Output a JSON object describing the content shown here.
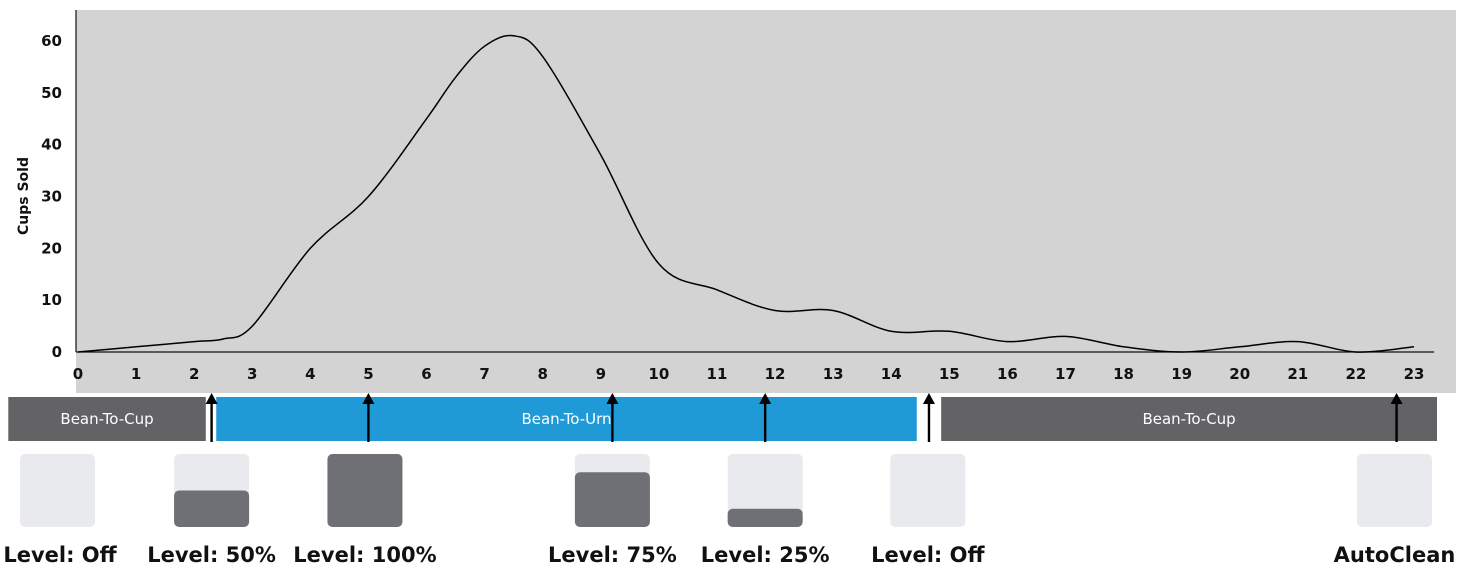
{
  "chart_data": {
    "type": "line",
    "ylabel": "Cups Sold",
    "xlabel": "",
    "xlim": [
      0,
      23
    ],
    "ylim": [
      0,
      62
    ],
    "x_ticks": [
      "0",
      "1",
      "2",
      "3",
      "4",
      "5",
      "6",
      "7",
      "8",
      "9",
      "10",
      "11",
      "12",
      "13",
      "14",
      "15",
      "16",
      "17",
      "18",
      "19",
      "20",
      "21",
      "22",
      "23"
    ],
    "y_ticks": [
      "0",
      "10",
      "20",
      "30",
      "40",
      "50",
      "60"
    ],
    "grid": false,
    "background": "#d3d3d3",
    "line_color": "#000000",
    "series": [
      {
        "x": [
          0,
          1,
          2,
          2.5,
          3,
          4,
          5,
          6,
          6.5,
          7,
          7.5,
          8,
          9,
          10,
          11,
          12,
          13,
          14,
          15,
          16,
          17,
          18,
          19,
          20,
          21,
          22,
          23
        ],
        "values": [
          0,
          1,
          2,
          2.5,
          5,
          20,
          30,
          45,
          53,
          59,
          61,
          57,
          38,
          17,
          12,
          8,
          8,
          4,
          4,
          2,
          3,
          1,
          0,
          1,
          2,
          0,
          1
        ]
      }
    ]
  },
  "bands": [
    {
      "label": "Bean-To-Cup",
      "start": -1.2,
      "end": 2.2,
      "color": "#636366"
    },
    {
      "label": "Bean-To-Urn",
      "start": 2.38,
      "end": 14.44,
      "color": "#1f9ad6"
    },
    {
      "label": "Bean-To-Cup",
      "start": 14.86,
      "end": 23.4,
      "color": "#636366"
    }
  ],
  "markers": [
    {
      "x": 2.3,
      "label": "Level: Off",
      "level": 0,
      "box_x": -1.0
    },
    {
      "x": 2.3,
      "label": "Level: 50%",
      "level": 0.5,
      "box_x": 2.3
    },
    {
      "x": 5.0,
      "label": "Level: 100%",
      "level": 1.0,
      "box_x": 4.94
    },
    {
      "x": 9.2,
      "label": "Level: 75%",
      "level": 0.75,
      "box_x": 9.2
    },
    {
      "x": 11.83,
      "label": "Level: 25%",
      "level": 0.25,
      "box_x": 11.83
    },
    {
      "x": 14.65,
      "label": "Level: Off",
      "level": 0,
      "box_x": 14.63
    },
    {
      "x": 22.7,
      "label": "AutoClean",
      "level": 0,
      "box_x": 22.7
    }
  ],
  "colors": {
    "box_empty": "#e8eaed",
    "box_fill": "#6f7075",
    "arrow": "#000000"
  }
}
